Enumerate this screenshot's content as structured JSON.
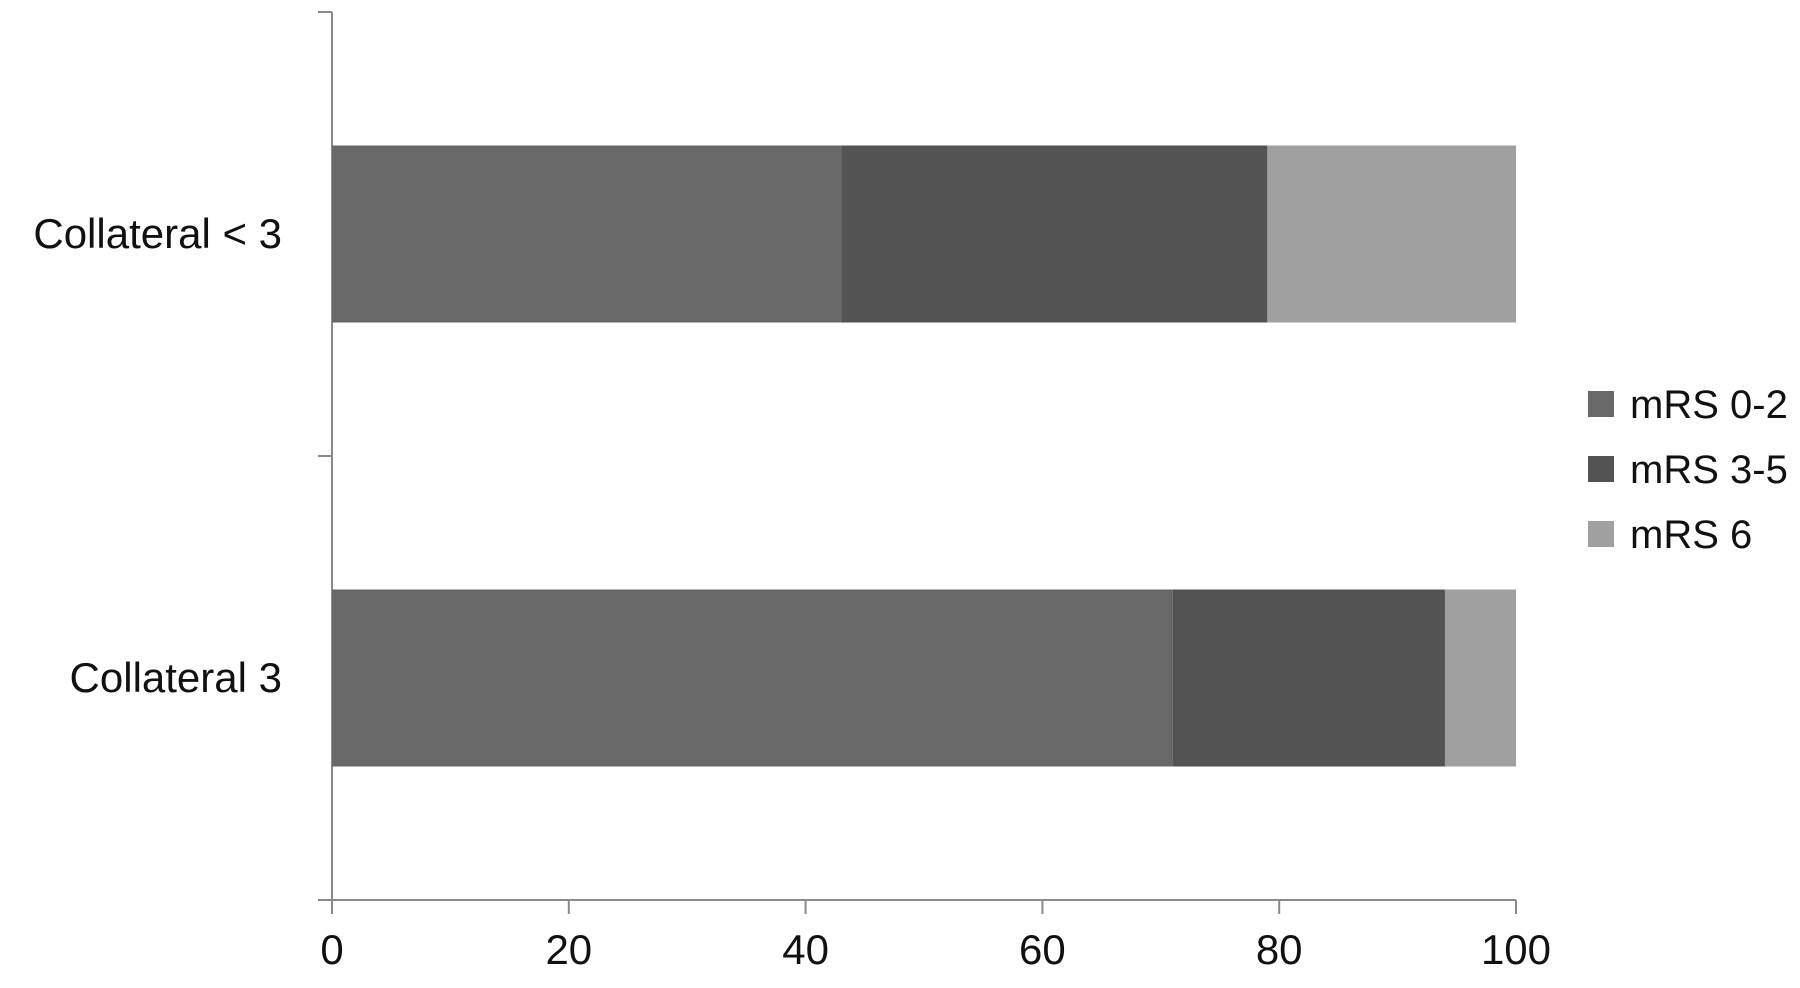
{
  "chart_data": {
    "type": "bar",
    "orientation": "horizontal",
    "stacked": true,
    "title": "",
    "xlabel": "",
    "ylabel": "",
    "categories": [
      "Collateral < 3",
      "Collateral 3"
    ],
    "series": [
      {
        "name": "mRS 0-2",
        "values": [
          43,
          71
        ],
        "color": "#686868"
      },
      {
        "name": "mRS 3-5",
        "values": [
          36,
          23
        ],
        "color": "#535353"
      },
      {
        "name": "mRS 6",
        "values": [
          21,
          6
        ],
        "color": "#a0a0a0"
      }
    ],
    "xlim": [
      0,
      100
    ],
    "xticks": [
      "0",
      "20",
      "40",
      "60",
      "80",
      "100"
    ],
    "grid": false,
    "legend_position": "right"
  }
}
